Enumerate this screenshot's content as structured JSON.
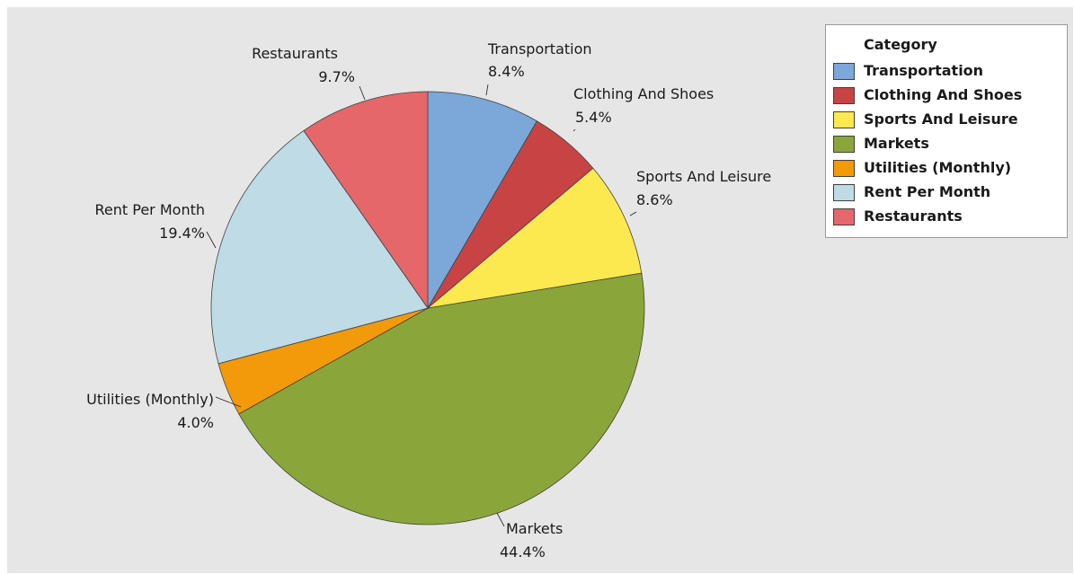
{
  "chart_data": {
    "type": "pie",
    "legend_title": "Category",
    "legend_position": "top-right",
    "slices": [
      {
        "name": "Transportation",
        "value": 8.4,
        "label": "8.4%",
        "color": "#7BA7D9"
      },
      {
        "name": "Clothing And Shoes",
        "value": 5.4,
        "label": "5.4%",
        "color": "#C84444"
      },
      {
        "name": "Sports And Leisure",
        "value": 8.6,
        "label": "8.6%",
        "color": "#FCE94F"
      },
      {
        "name": "Markets",
        "value": 44.4,
        "label": "44.4%",
        "color": "#8AA63A"
      },
      {
        "name": "Utilities (Monthly)",
        "value": 4.0,
        "label": "4.0%",
        "color": "#F29A0A"
      },
      {
        "name": "Rent Per Month",
        "value": 19.4,
        "label": "19.4%",
        "color": "#BEDBE6"
      },
      {
        "name": "Restaurants",
        "value": 9.7,
        "label": "9.7%",
        "color": "#E5676A"
      }
    ]
  }
}
